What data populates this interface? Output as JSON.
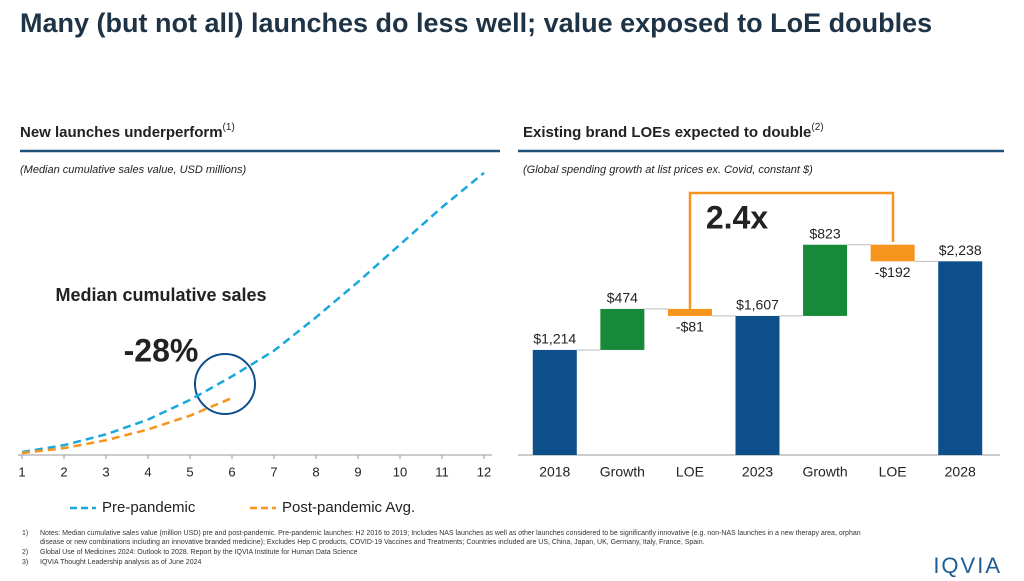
{
  "title": "Many (but not all) launches do less well; value exposed to LoE doubles",
  "chart_data": [
    {
      "type": "line",
      "title": "New launches underperform",
      "title_note": "(1)",
      "subtitle": "(Median cumulative sales value, USD millions)",
      "x": [
        1,
        2,
        3,
        4,
        5,
        6,
        7,
        8,
        9,
        10,
        11,
        12
      ],
      "xlim": [
        1,
        12
      ],
      "xticks": [
        1,
        2,
        3,
        4,
        5,
        6,
        7,
        8,
        9,
        10,
        11,
        12
      ],
      "ylim": [
        0,
        300
      ],
      "series": [
        {
          "name": "Pre-pandemic",
          "color": "#1aa7dc",
          "values": [
            3,
            10,
            21,
            36,
            56,
            80,
            106,
            140,
            176,
            214,
            252,
            287
          ]
        },
        {
          "name": "Post-pandemic Avg.",
          "color": "#f7941d",
          "values": [
            2,
            7,
            15,
            26,
            40,
            58,
            null,
            null,
            null,
            null,
            null,
            null
          ]
        }
      ],
      "annotations": [
        "Median cumulative sales",
        "-28%"
      ]
    },
    {
      "type": "waterfall",
      "title": "Existing brand LOEs expected to double",
      "title_note": "(2)",
      "subtitle": "(Global spending growth at list prices ex. Covid, constant $)",
      "categories": [
        "2018",
        "Growth",
        "LOE",
        "2023",
        "Growth",
        "LOE",
        "2028"
      ],
      "values": [
        1214,
        474,
        -81,
        1607,
        823,
        -192,
        2238
      ],
      "value_labels": [
        "$1,214",
        "$474",
        "-$81",
        "$1,607",
        "$823",
        "-$192",
        "$2,238"
      ],
      "totals": [
        true,
        false,
        false,
        true,
        false,
        false,
        true
      ],
      "colors": {
        "total": "#0d4f8b",
        "increase": "#178a3a",
        "decrease": "#f7941d"
      },
      "ylim": [
        0,
        2600
      ],
      "annotations": [
        "2.4x"
      ]
    }
  ],
  "footnotes": [
    {
      "marker": "1)",
      "text": "Notes: Median cumulative sales value (million USD) pre and post-pandemic. Pre-pandemic launches: H2 2016 to 2019; Includes NAS launches as well as other launches considered to be significantly innovative (e.g. non-NAS launches in a new therapy area, orphan disease or new combinations including an innovative branded medicine); Excludes Hep C products, COVID-19 Vaccines and Treatments; Countries included are US, China, Japan, UK, Germany, Italy, France, Spain."
    },
    {
      "marker": "2)",
      "text": "Global Use of Medicines 2024: Outlook to 2028. Report by the IQVIA Institute for Human Data Science"
    },
    {
      "marker": "3)",
      "text": "IQVIA Thought Leadership analysis as of June 2024"
    }
  ],
  "logo": "IQVIA"
}
